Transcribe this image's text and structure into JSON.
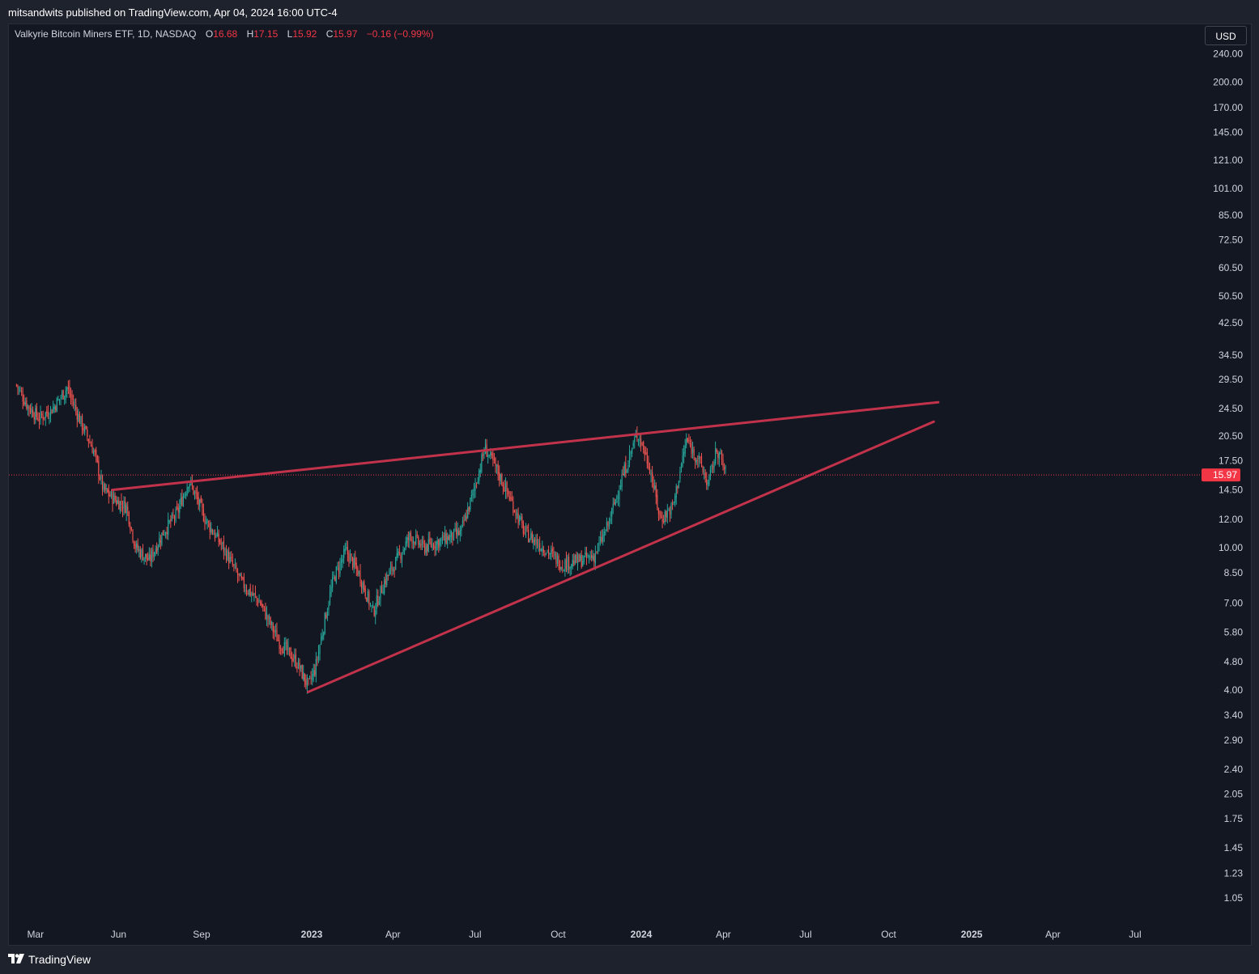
{
  "header": {
    "publish_line": "mitsandwits published on TradingView.com, Apr 04, 2024 16:00 UTC-4"
  },
  "legend": {
    "symbol": "Valkyrie Bitcoin Miners ETF, 1D, NASDAQ",
    "open_label": "O",
    "open": "16.68",
    "high_label": "H",
    "high": "17.15",
    "low_label": "L",
    "low": "15.92",
    "close_label": "C",
    "close": "15.97",
    "change": "−0.16 (−0.99%)"
  },
  "currency_button": "USD",
  "footer": {
    "brand": "TradingView"
  },
  "colors": {
    "background": "#131722",
    "up": "#26a69a",
    "down": "#ef5350",
    "trendline": "#c2334b",
    "last_price": "#f23645",
    "text": "#d1d4dc"
  },
  "chart_data": {
    "type": "candlestick",
    "y_scale": "log",
    "ylim": [
      0.95,
      280
    ],
    "y_ticks": [
      "240.00",
      "200.00",
      "170.00",
      "145.00",
      "121.00",
      "101.00",
      "85.00",
      "72.50",
      "60.50",
      "50.50",
      "42.50",
      "34.50",
      "29.50",
      "24.50",
      "20.50",
      "17.50",
      "14.50",
      "12.00",
      "10.00",
      "8.50",
      "7.00",
      "5.80",
      "4.80",
      "4.00",
      "3.40",
      "2.90",
      "2.40",
      "2.05",
      "1.75",
      "1.45",
      "1.23",
      "1.05"
    ],
    "x_ticks": [
      {
        "label": "Mar",
        "date": "2022-03-01",
        "bold": false
      },
      {
        "label": "Jun",
        "date": "2022-06-01",
        "bold": false
      },
      {
        "label": "Sep",
        "date": "2022-09-01",
        "bold": false
      },
      {
        "label": "2023",
        "date": "2023-01-01",
        "bold": true
      },
      {
        "label": "Apr",
        "date": "2023-04-01",
        "bold": false
      },
      {
        "label": "Jul",
        "date": "2023-07-01",
        "bold": false
      },
      {
        "label": "Oct",
        "date": "2023-10-01",
        "bold": false
      },
      {
        "label": "2024",
        "date": "2024-01-01",
        "bold": true
      },
      {
        "label": "Apr",
        "date": "2024-04-01",
        "bold": false
      },
      {
        "label": "Jul",
        "date": "2024-07-01",
        "bold": false
      },
      {
        "label": "Oct",
        "date": "2024-10-01",
        "bold": false
      },
      {
        "label": "2025",
        "date": "2025-01-01",
        "bold": true
      },
      {
        "label": "Apr",
        "date": "2025-04-01",
        "bold": false
      },
      {
        "label": "Jul",
        "date": "2025-07-01",
        "bold": false
      }
    ],
    "last_price": "15.97",
    "price_path": [
      {
        "date": "2022-02-08",
        "close": 28.5
      },
      {
        "date": "2022-02-20",
        "close": 25.0
      },
      {
        "date": "2022-03-05",
        "close": 23.0
      },
      {
        "date": "2022-03-20",
        "close": 24.5
      },
      {
        "date": "2022-04-05",
        "close": 28.0
      },
      {
        "date": "2022-04-20",
        "close": 22.5
      },
      {
        "date": "2022-05-05",
        "close": 18.5
      },
      {
        "date": "2022-05-15",
        "close": 14.5
      },
      {
        "date": "2022-05-30",
        "close": 13.5
      },
      {
        "date": "2022-06-10",
        "close": 13.0
      },
      {
        "date": "2022-06-20",
        "close": 10.0
      },
      {
        "date": "2022-07-05",
        "close": 9.2
      },
      {
        "date": "2022-07-20",
        "close": 11.0
      },
      {
        "date": "2022-08-05",
        "close": 12.5
      },
      {
        "date": "2022-08-18",
        "close": 15.5
      },
      {
        "date": "2022-09-05",
        "close": 12.0
      },
      {
        "date": "2022-09-25",
        "close": 10.0
      },
      {
        "date": "2022-10-15",
        "close": 8.0
      },
      {
        "date": "2022-11-05",
        "close": 7.0
      },
      {
        "date": "2022-11-25",
        "close": 5.5
      },
      {
        "date": "2022-12-15",
        "close": 4.8
      },
      {
        "date": "2022-12-28",
        "close": 4.1
      },
      {
        "date": "2023-01-05",
        "close": 4.6
      },
      {
        "date": "2023-01-15",
        "close": 6.2
      },
      {
        "date": "2023-01-25",
        "close": 8.2
      },
      {
        "date": "2023-02-08",
        "close": 9.8
      },
      {
        "date": "2023-02-22",
        "close": 8.5
      },
      {
        "date": "2023-03-10",
        "close": 6.6
      },
      {
        "date": "2023-03-22",
        "close": 8.0
      },
      {
        "date": "2023-04-05",
        "close": 9.2
      },
      {
        "date": "2023-04-20",
        "close": 10.8
      },
      {
        "date": "2023-05-05",
        "close": 10.0
      },
      {
        "date": "2023-05-25",
        "close": 10.5
      },
      {
        "date": "2023-06-15",
        "close": 11.0
      },
      {
        "date": "2023-06-28",
        "close": 14.0
      },
      {
        "date": "2023-07-12",
        "close": 19.0
      },
      {
        "date": "2023-07-25",
        "close": 16.5
      },
      {
        "date": "2023-08-10",
        "close": 13.5
      },
      {
        "date": "2023-08-25",
        "close": 11.0
      },
      {
        "date": "2023-09-15",
        "close": 10.0
      },
      {
        "date": "2023-10-05",
        "close": 9.0
      },
      {
        "date": "2023-10-25",
        "close": 9.2
      },
      {
        "date": "2023-11-10",
        "close": 9.5
      },
      {
        "date": "2023-11-25",
        "close": 11.5
      },
      {
        "date": "2023-12-10",
        "close": 15.5
      },
      {
        "date": "2023-12-28",
        "close": 21.0
      },
      {
        "date": "2024-01-10",
        "close": 17.0
      },
      {
        "date": "2024-01-22",
        "close": 12.0
      },
      {
        "date": "2024-02-05",
        "close": 13.0
      },
      {
        "date": "2024-02-20",
        "close": 20.0
      },
      {
        "date": "2024-03-05",
        "close": 17.5
      },
      {
        "date": "2024-03-15",
        "close": 15.0
      },
      {
        "date": "2024-03-25",
        "close": 19.0
      },
      {
        "date": "2024-04-04",
        "close": 15.97
      }
    ],
    "trendlines": [
      {
        "name": "upper",
        "start": {
          "date": "2022-05-25",
          "value": 14.5
        },
        "end": {
          "date": "2024-11-25",
          "value": 25.5
        }
      },
      {
        "name": "lower",
        "start": {
          "date": "2022-12-28",
          "value": 3.95
        },
        "end": {
          "date": "2024-11-20",
          "value": 22.5
        }
      }
    ]
  }
}
